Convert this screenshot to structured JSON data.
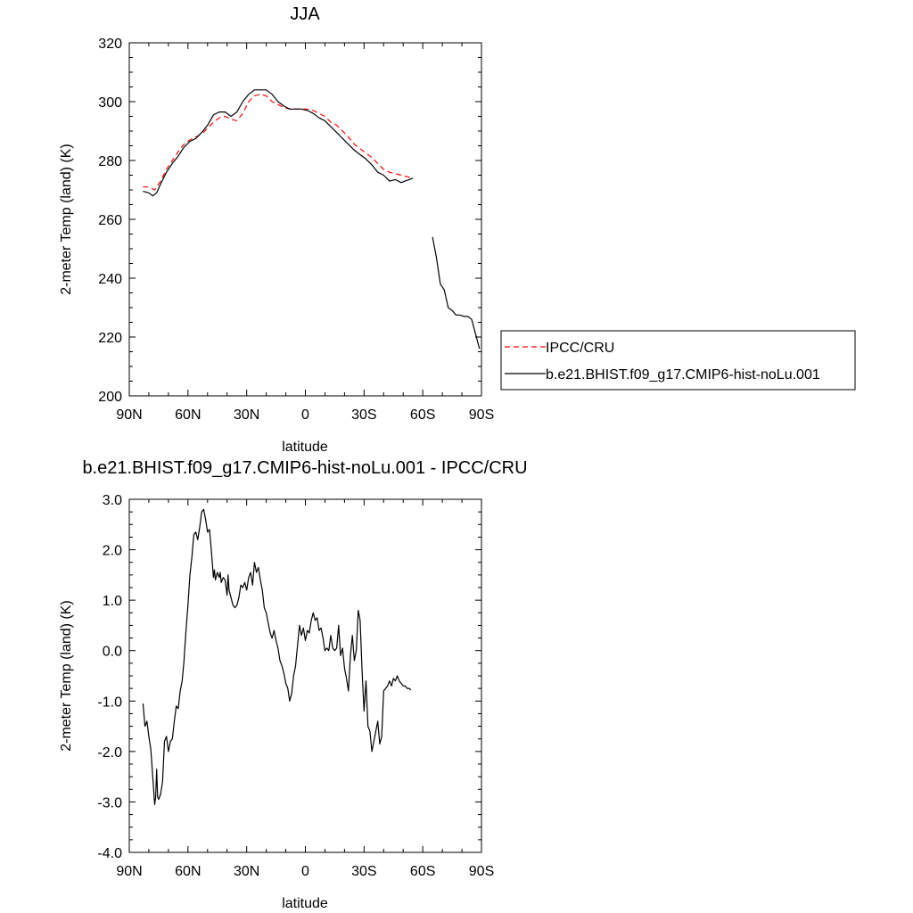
{
  "chart_data": [
    {
      "type": "line",
      "title": "JJA",
      "xlabel": "latitude",
      "ylabel": "2-meter Temp (land) (K)",
      "xlim": [
        90,
        -90
      ],
      "ylim": [
        200,
        320
      ],
      "x_tick_values": [
        90,
        60,
        30,
        0,
        -30,
        -60,
        -90
      ],
      "x_tick_labels": [
        "90N",
        "60N",
        "30N",
        "0",
        "30S",
        "60S",
        "90S"
      ],
      "y_tick_values": [
        200,
        220,
        240,
        260,
        280,
        300,
        320
      ],
      "y_tick_labels": [
        "200",
        "220",
        "240",
        "260",
        "280",
        "300",
        "320"
      ],
      "grid": false,
      "legend": "right, outside plot area",
      "series": [
        {
          "name": "IPCC/CRU",
          "color": "#ff0000",
          "dash": "dashed",
          "x": [
            83,
            80,
            77,
            74,
            71,
            68,
            65,
            62,
            59,
            56,
            53,
            50,
            47,
            44,
            41,
            38,
            35,
            32,
            29,
            26,
            23,
            20,
            17,
            14,
            11,
            8,
            5,
            2,
            -1,
            -4,
            -7,
            -10,
            -13,
            -16,
            -19,
            -22,
            -25,
            -28,
            -31,
            -34,
            -37,
            -40,
            -43,
            -46,
            -49,
            -52,
            -55
          ],
          "y": [
            271,
            271,
            270,
            273,
            277,
            280,
            283,
            285.5,
            287,
            288,
            289,
            291,
            293,
            294.5,
            295,
            294,
            293.5,
            296,
            300,
            302,
            302.5,
            302,
            300,
            299,
            298,
            297.5,
            297.5,
            297.5,
            297.5,
            297,
            296,
            295,
            293,
            292,
            290,
            288,
            285.5,
            284,
            282.5,
            281,
            279,
            277,
            276,
            275.5,
            275,
            274.5,
            274
          ]
        },
        {
          "name": "b.e21.BHIST.f09_g17.CMIP6-hist-noLu.001",
          "color": "#000000",
          "dash": "solid",
          "x": [
            83,
            80,
            78,
            76,
            74,
            71,
            68,
            65,
            62,
            59,
            56,
            53,
            50,
            47,
            44,
            41,
            38,
            35,
            32,
            29,
            26,
            23,
            20,
            17,
            14,
            11,
            8,
            5,
            2,
            -1,
            -4,
            -7,
            -10,
            -13,
            -16,
            -19,
            -22,
            -25,
            -28,
            -31,
            -34,
            -37,
            -40,
            -43,
            -46,
            -49,
            -51,
            -53,
            -55,
            null,
            -65,
            -67,
            -69,
            -71,
            -73,
            -75,
            -77,
            -79,
            -81,
            -83,
            -85,
            -87,
            -89
          ],
          "y": [
            269.5,
            269,
            268,
            269,
            272,
            276,
            279,
            281.5,
            284.5,
            286.5,
            287.5,
            289.5,
            292,
            295.5,
            296.5,
            296.5,
            295,
            296.5,
            300,
            302.5,
            304,
            304,
            304,
            302.5,
            300,
            298.5,
            297.5,
            297.5,
            297.5,
            297,
            296,
            294.5,
            293.5,
            291.5,
            289.5,
            287.5,
            285.5,
            283.5,
            282,
            280.5,
            278.5,
            276,
            275,
            273,
            273.5,
            272.5,
            273,
            273.5,
            274,
            null,
            254,
            247,
            238,
            236,
            230,
            229,
            227.5,
            227.5,
            227,
            227,
            226,
            221,
            216
          ]
        }
      ]
    },
    {
      "type": "line",
      "title": "b.e21.BHIST.f09_g17.CMIP6-hist-noLu.001 - IPCC/CRU",
      "xlabel": "latitude",
      "ylabel": "2-meter Temp (land) (K)",
      "xlim": [
        90,
        -90
      ],
      "ylim": [
        -4,
        3
      ],
      "x_tick_values": [
        90,
        60,
        30,
        0,
        -30,
        -60,
        -90
      ],
      "x_tick_labels": [
        "90N",
        "60N",
        "30N",
        "0",
        "30S",
        "60S",
        "90S"
      ],
      "y_tick_values": [
        3,
        2,
        1,
        0,
        -1,
        -2,
        -3,
        -4
      ],
      "y_tick_labels": [
        "3.0",
        "2.0",
        "1.0",
        "0.0",
        "-1.0",
        "-2.0",
        "-3.0",
        "-4.0"
      ],
      "grid": false,
      "series": [
        {
          "color": "#000000",
          "dash": "solid",
          "x": [
            83,
            82,
            81,
            80,
            79,
            78,
            77,
            76.5,
            76,
            75.5,
            75,
            74,
            73,
            72,
            71,
            70,
            69,
            68,
            67,
            66,
            65,
            64,
            63,
            62,
            61,
            60,
            59,
            58,
            57,
            56,
            55,
            54,
            53,
            52,
            51,
            50,
            49,
            48,
            47,
            46.5,
            46,
            45,
            44,
            43.5,
            43,
            42,
            41,
            40,
            39.5,
            39,
            38,
            37,
            36,
            35,
            34,
            33,
            32,
            31,
            30,
            29,
            28,
            27,
            26,
            25,
            24,
            23,
            22,
            21,
            20,
            19,
            18,
            17,
            16,
            15,
            14,
            13,
            12,
            11,
            10,
            9,
            8,
            7,
            6,
            5,
            4,
            3,
            2,
            1,
            0,
            -1,
            -2,
            -3,
            -4,
            -5,
            -6,
            -7,
            -8,
            -9,
            -10,
            -11,
            -12,
            -13,
            -14,
            -15,
            -16,
            -17,
            -18,
            -19,
            -20,
            -21,
            -22,
            -23,
            -24,
            -25,
            -26,
            -27,
            -28,
            -29,
            -30,
            -31,
            -32,
            -33,
            -34,
            -35,
            -36,
            -37,
            -38,
            -39,
            -40,
            -41,
            -42,
            -43,
            -44,
            -45,
            -46,
            -47,
            -48,
            -49,
            -50,
            -51,
            -52,
            -53,
            -54
          ],
          "y": [
            -1.05,
            -1.5,
            -1.4,
            -1.7,
            -1.95,
            -2.5,
            -3.05,
            -2.9,
            -2.35,
            -2.9,
            -2.95,
            -2.85,
            -2.6,
            -1.8,
            -1.7,
            -2.0,
            -1.8,
            -1.75,
            -1.4,
            -1.1,
            -1.15,
            -0.8,
            -0.6,
            -0.2,
            0.4,
            0.9,
            1.5,
            1.85,
            2.3,
            2.35,
            2.2,
            2.45,
            2.75,
            2.8,
            2.6,
            2.35,
            2.4,
            1.95,
            1.45,
            1.6,
            1.4,
            1.55,
            1.45,
            1.55,
            1.35,
            1.45,
            1.4,
            1.1,
            1.5,
            1.2,
            1.05,
            0.9,
            0.85,
            0.9,
            1.05,
            1.3,
            1.25,
            1.35,
            1.2,
            1.45,
            1.55,
            1.3,
            1.75,
            1.55,
            1.65,
            1.4,
            1.2,
            0.85,
            0.75,
            0.55,
            0.35,
            0.25,
            0.4,
            0.2,
            0.05,
            -0.2,
            -0.3,
            -0.45,
            -0.65,
            -0.75,
            -1.0,
            -0.85,
            -0.5,
            -0.3,
            0.1,
            0.5,
            0.3,
            0.45,
            0.2,
            0.4,
            0.35,
            0.6,
            0.75,
            0.6,
            0.65,
            0.4,
            0.45,
            0.25,
            0.0,
            0.05,
            0.0,
            0.3,
            0.05,
            0.0,
            0.05,
            0.5,
            -0.1,
            0.05,
            -0.35,
            -0.55,
            -0.8,
            -0.1,
            0.3,
            -0.2,
            0.0,
            0.8,
            0.6,
            -0.4,
            -1.2,
            -0.6,
            -1.5,
            -1.6,
            -2.0,
            -1.8,
            -1.6,
            -1.4,
            -1.85,
            -1.7,
            -0.8,
            -0.75,
            -0.7,
            -0.6,
            -0.7,
            -0.55,
            -0.6,
            -0.5,
            -0.6,
            -0.65,
            -0.7,
            -0.7,
            -0.75,
            -0.75,
            -0.78
          ]
        }
      ]
    }
  ]
}
